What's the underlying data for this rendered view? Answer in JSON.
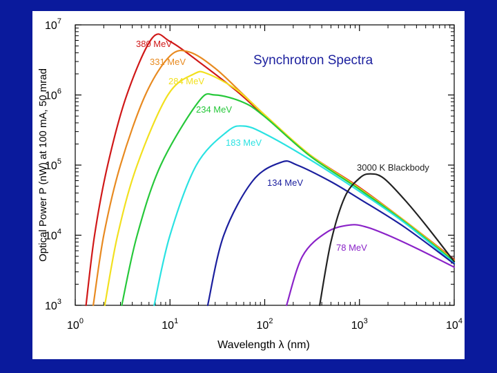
{
  "chart_data": {
    "type": "line",
    "title": "Synchrotron Spectra",
    "xlabel": "Wavelength λ (nm)",
    "ylabel": "Optical Power P (nW) at 100 mA, 50 mrad",
    "x_scale": "log",
    "y_scale": "log",
    "xlim": [
      1,
      10000
    ],
    "ylim": [
      1000,
      10000000
    ],
    "x_ticks": [
      {
        "value": 1,
        "base": "10",
        "exp": "0"
      },
      {
        "value": 10,
        "base": "10",
        "exp": "1"
      },
      {
        "value": 100,
        "base": "10",
        "exp": "2"
      },
      {
        "value": 1000,
        "base": "10",
        "exp": "3"
      },
      {
        "value": 10000,
        "base": "10",
        "exp": "4"
      }
    ],
    "y_ticks": [
      {
        "value": 1000,
        "base": "10",
        "exp": "3"
      },
      {
        "value": 10000,
        "base": "10",
        "exp": "4"
      },
      {
        "value": 100000,
        "base": "10",
        "exp": "5"
      },
      {
        "value": 1000000,
        "base": "10",
        "exp": "6"
      },
      {
        "value": 10000000,
        "base": "10",
        "exp": "7"
      }
    ],
    "grid": false,
    "legend": "none (curves labeled directly)",
    "series": [
      {
        "name": "380 MeV",
        "color": "#d01818",
        "points": [
          [
            1.3,
            1000
          ],
          [
            1.6,
            10000
          ],
          [
            2.2,
            100000
          ],
          [
            3.5,
            1000000
          ],
          [
            6.5,
            6500000
          ],
          [
            10,
            5800000
          ],
          [
            20,
            3000000
          ],
          [
            50,
            1150000
          ],
          [
            100,
            500000
          ],
          [
            300,
            140000
          ],
          [
            1000,
            48000
          ],
          [
            3000,
            16000
          ],
          [
            10000,
            4500
          ]
        ]
      },
      {
        "name": "331 MeV",
        "color": "#e88a20",
        "points": [
          [
            1.55,
            1000
          ],
          [
            2.0,
            10000
          ],
          [
            3.0,
            100000
          ],
          [
            5.5,
            1000000
          ],
          [
            10,
            3600000
          ],
          [
            16,
            4100000
          ],
          [
            30,
            2400000
          ],
          [
            60,
            1000000
          ],
          [
            100,
            520000
          ],
          [
            300,
            140000
          ],
          [
            1000,
            47000
          ],
          [
            3000,
            16000
          ],
          [
            10000,
            4400
          ]
        ]
      },
      {
        "name": "284 MeV",
        "color": "#f2e01e",
        "points": [
          [
            2.05,
            1000
          ],
          [
            2.8,
            10000
          ],
          [
            4.5,
            100000
          ],
          [
            9.5,
            1000000
          ],
          [
            18,
            2000000
          ],
          [
            25,
            2000000
          ],
          [
            50,
            1200000
          ],
          [
            100,
            520000
          ],
          [
            300,
            140000
          ],
          [
            1000,
            46000
          ],
          [
            3000,
            15800
          ],
          [
            10000,
            4300
          ]
        ]
      },
      {
        "name": "234 MeV",
        "color": "#26c83a",
        "points": [
          [
            3.1,
            1000
          ],
          [
            4.5,
            10000
          ],
          [
            8,
            100000
          ],
          [
            20,
            800000
          ],
          [
            30,
            1000000
          ],
          [
            60,
            780000
          ],
          [
            100,
            490000
          ],
          [
            300,
            135000
          ],
          [
            1000,
            45000
          ],
          [
            3000,
            15500
          ],
          [
            10000,
            4200
          ]
        ]
      },
      {
        "name": "183 MeV",
        "color": "#2ae2e2",
        "points": [
          [
            6.8,
            1000
          ],
          [
            10,
            10000
          ],
          [
            19,
            100000
          ],
          [
            40,
            300000
          ],
          [
            60,
            360000
          ],
          [
            100,
            280000
          ],
          [
            300,
            120000
          ],
          [
            1000,
            42000
          ],
          [
            3000,
            15000
          ],
          [
            10000,
            4000
          ]
        ]
      },
      {
        "name": "134 MeV",
        "color": "#1b1f9e",
        "points": [
          [
            25,
            1000
          ],
          [
            37,
            10000
          ],
          [
            75,
            60000
          ],
          [
            150,
            110000
          ],
          [
            220,
            100000
          ],
          [
            500,
            58000
          ],
          [
            1000,
            33000
          ],
          [
            3000,
            13000
          ],
          [
            10000,
            3900
          ]
        ]
      },
      {
        "name": "78 MeV",
        "color": "#8a22c8",
        "points": [
          [
            170,
            1000
          ],
          [
            250,
            5000
          ],
          [
            450,
            11000
          ],
          [
            800,
            14000
          ],
          [
            1200,
            13000
          ],
          [
            2000,
            10000
          ],
          [
            4000,
            6500
          ],
          [
            10000,
            3500
          ]
        ]
      },
      {
        "name": "3000 K Blackbody",
        "color": "#222222",
        "points": [
          [
            380,
            1000
          ],
          [
            500,
            8000
          ],
          [
            700,
            35000
          ],
          [
            1000,
            65000
          ],
          [
            1300,
            75000
          ],
          [
            1800,
            65000
          ],
          [
            3000,
            32000
          ],
          [
            5000,
            14000
          ],
          [
            10000,
            4200
          ]
        ]
      }
    ]
  }
}
